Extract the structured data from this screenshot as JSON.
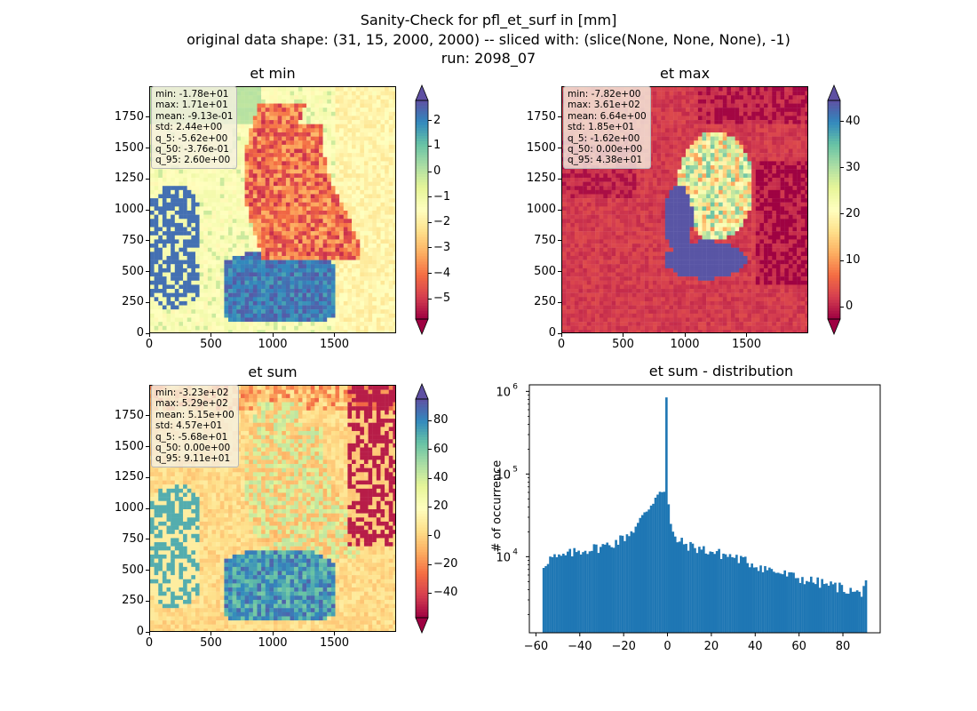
{
  "figure": {
    "title_lines": [
      "Sanity-Check for pfl_et_surf in [mm]",
      "original data shape: (31, 15, 2000, 2000) -- sliced with: (slice(None, None, None), -1)",
      "run: 2098_07"
    ]
  },
  "colors": {
    "spectral": [
      "#9e0142",
      "#d53e4f",
      "#f46d43",
      "#fdae61",
      "#fee08b",
      "#ffffbf",
      "#e6f598",
      "#abdda4",
      "#66c2a5",
      "#3288bd",
      "#5e4fa2"
    ],
    "hist_bar": "#1f77b4"
  },
  "chart_data": [
    {
      "type": "heatmap",
      "title": "et min",
      "xlim": [
        0,
        2000
      ],
      "ylim": [
        0,
        2000
      ],
      "xticks": [
        "0",
        "500",
        "1000",
        "1500"
      ],
      "yticks": [
        "0",
        "250",
        "500",
        "750",
        "1000",
        "1250",
        "1500",
        "1750"
      ],
      "colormap": "Spectral",
      "colorbar": {
        "min": -5.8,
        "max": 2.8,
        "ticks": [
          "−5",
          "−4",
          "−3",
          "−2",
          "−1",
          "0",
          "1",
          "2"
        ],
        "tick_values": [
          -5,
          -4,
          -3,
          -2,
          -1,
          0,
          1,
          2
        ],
        "extend": "both"
      },
      "stats": [
        "min: -1.78e+01",
        "max: 1.71e+01",
        "mean: -9.13e-01",
        "std: 2.44e+00",
        "q_5: -5.62e+00",
        "q_50: -3.76e-01",
        "q_95: 2.60e+00"
      ]
    },
    {
      "type": "heatmap",
      "title": "et max",
      "xlim": [
        0,
        2000
      ],
      "ylim": [
        0,
        2000
      ],
      "xticks": [
        "0",
        "500",
        "1000",
        "1500"
      ],
      "yticks": [
        "0",
        "250",
        "500",
        "750",
        "1000",
        "1250",
        "1500",
        "1750"
      ],
      "colormap": "Spectral",
      "colorbar": {
        "min": -2.6,
        "max": 44.5,
        "ticks": [
          "0",
          "10",
          "20",
          "30",
          "40"
        ],
        "tick_values": [
          0,
          10,
          20,
          30,
          40
        ],
        "extend": "both"
      },
      "stats": [
        "min: -7.82e+00",
        "max: 3.61e+02",
        "mean: 6.64e+00",
        "std: 1.85e+01",
        "q_5: -1.62e+00",
        "q_50: 0.00e+00",
        "q_95: 4.38e+01"
      ]
    },
    {
      "type": "heatmap",
      "title": "et sum",
      "xlim": [
        0,
        2000
      ],
      "ylim": [
        0,
        2000
      ],
      "xticks": [
        "0",
        "500",
        "1000",
        "1500"
      ],
      "yticks": [
        "0",
        "250",
        "500",
        "750",
        "1000",
        "1250",
        "1500",
        "1750"
      ],
      "colormap": "Spectral",
      "colorbar": {
        "min": -57,
        "max": 95,
        "ticks": [
          "−40",
          "−20",
          "0",
          "20",
          "40",
          "60",
          "80"
        ],
        "tick_values": [
          -40,
          -20,
          0,
          20,
          40,
          60,
          80
        ],
        "extend": "both"
      },
      "stats": [
        "min: -3.23e+02",
        "max: 5.29e+02",
        "mean: 5.15e+00",
        "std: 4.57e+01",
        "q_5: -5.68e+01",
        "q_50: 0.00e+00",
        "q_95: 9.11e+01"
      ]
    },
    {
      "type": "bar",
      "title": "et sum - distribution",
      "ylabel": "# of occurrence",
      "yscale": "log",
      "xlim": [
        -63,
        97
      ],
      "ylim": [
        1200,
        1200000
      ],
      "xticks": [
        "−60",
        "−40",
        "−20",
        "0",
        "20",
        "40",
        "60",
        "80"
      ],
      "xtick_values": [
        -60,
        -40,
        -20,
        0,
        20,
        40,
        60,
        80
      ],
      "yticks": [
        {
          "value": 10000,
          "base": "10",
          "exp": "4"
        },
        {
          "value": 100000,
          "base": "10",
          "exp": "5"
        },
        {
          "value": 1000000,
          "base": "10",
          "exp": "6"
        }
      ],
      "bins": {
        "start": -57,
        "end": 91,
        "count": 148
      },
      "profile": [
        [
          -57,
          7500
        ],
        [
          -55,
          9000
        ],
        [
          -52,
          10000
        ],
        [
          -50,
          9500
        ],
        [
          -45,
          10800
        ],
        [
          -40,
          11800
        ],
        [
          -35,
          12500
        ],
        [
          -30,
          13200
        ],
        [
          -25,
          14500
        ],
        [
          -20,
          17000
        ],
        [
          -15,
          22000
        ],
        [
          -10,
          34000
        ],
        [
          -6,
          50000
        ],
        [
          -3,
          70000
        ],
        [
          -1.5,
          60000
        ],
        [
          -0.5,
          850000
        ],
        [
          0.5,
          40000
        ],
        [
          2,
          19000
        ],
        [
          5,
          15500
        ],
        [
          10,
          13500
        ],
        [
          20,
          11500
        ],
        [
          30,
          10000
        ],
        [
          40,
          8000
        ],
        [
          50,
          6500
        ],
        [
          60,
          5500
        ],
        [
          70,
          4800
        ],
        [
          80,
          4200
        ],
        [
          88,
          3500
        ],
        [
          91,
          5800
        ]
      ]
    }
  ]
}
